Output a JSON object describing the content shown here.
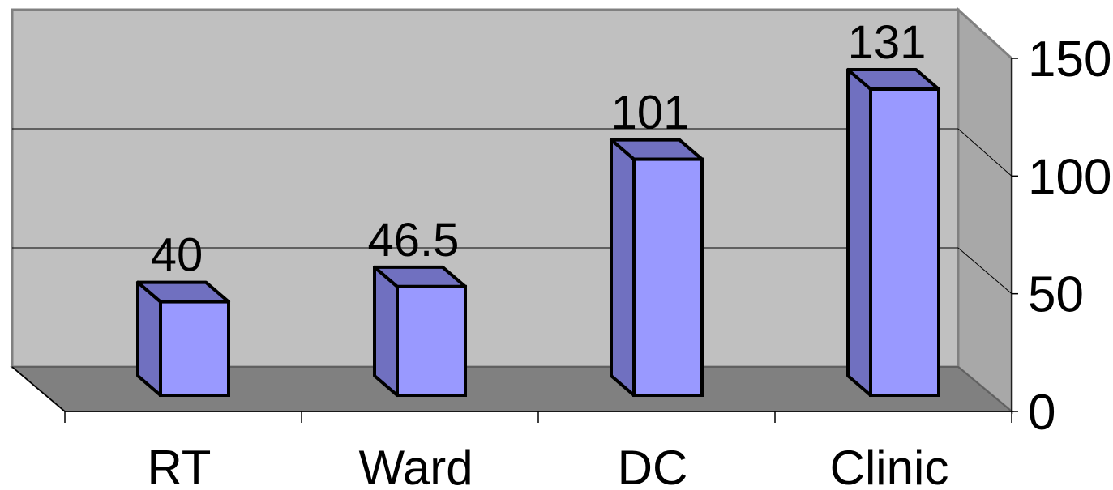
{
  "chart_data": {
    "type": "bar",
    "categories": [
      "RT",
      "Ward",
      "DC",
      "Clinic"
    ],
    "values": [
      40,
      46.5,
      101,
      131
    ],
    "data_labels": [
      "40",
      "46.5",
      "101",
      "131"
    ],
    "yticks": [
      "0",
      "50",
      "100",
      "150"
    ],
    "ylim": [
      0,
      150
    ],
    "grid": true,
    "legend": "none",
    "three_d": true,
    "colors": {
      "bar_front": "#9999ff",
      "bar_side": "#7070c0",
      "wall": "#c0c0c0",
      "floor": "#808080",
      "side_wall": "#a8a8a8"
    }
  }
}
